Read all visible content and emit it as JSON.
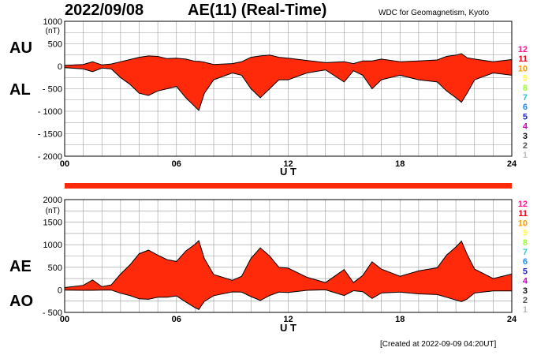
{
  "header": {
    "date": "2022/09/08",
    "title": "AE(11) (Real-Time)",
    "source": "WDC for Geomagnetism, Kyoto"
  },
  "footer": {
    "created": "[Created at 2022-09-09 04:20UT]"
  },
  "colors": {
    "fill": "#ff2a0a",
    "outline": "#000000",
    "grid": "#9a9a9a",
    "indicator": "#ff2a0a"
  },
  "legend_levels": {
    "labels": [
      "12",
      "11",
      "10",
      "9",
      "8",
      "7",
      "6",
      "5",
      "4",
      "3",
      "2",
      "1"
    ],
    "colors": [
      "#ff1493",
      "#e8001c",
      "#ff9900",
      "#ffff40",
      "#99ff33",
      "#22cccc",
      "#1c8cff",
      "#2222cc",
      "#cc00cc",
      "#111111",
      "#555555",
      "#bbbbbb"
    ]
  },
  "chart_data": [
    {
      "type": "area",
      "panel": "AU / AL",
      "labels": [
        "AU",
        "AL"
      ],
      "unit": "(nT)",
      "xlabel": "U T",
      "xlim": [
        0,
        24
      ],
      "xticks": [
        "00",
        "06",
        "12",
        "18",
        "24"
      ],
      "ylim": [
        -2000,
        1000
      ],
      "yticks": [
        "1000",
        "500",
        "0",
        "- 500",
        "- 1000",
        "- 1500",
        "- 2000"
      ],
      "grid": true,
      "x": [
        0,
        1,
        1.5,
        2,
        2.5,
        3,
        3.5,
        4,
        4.5,
        5,
        5.5,
        6,
        6.5,
        7,
        7.2,
        7.5,
        8,
        9,
        9.5,
        10,
        10.5,
        11,
        11.5,
        12,
        13,
        14,
        15,
        15.5,
        16,
        16.5,
        17,
        18,
        19,
        20,
        20.5,
        21,
        21.3,
        21.6,
        22,
        23,
        24
      ],
      "series": [
        {
          "name": "AU",
          "values": [
            20,
            40,
            100,
            30,
            50,
            100,
            150,
            200,
            230,
            220,
            170,
            180,
            160,
            110,
            110,
            90,
            40,
            60,
            100,
            200,
            230,
            250,
            200,
            180,
            130,
            80,
            100,
            60,
            120,
            120,
            160,
            100,
            120,
            140,
            220,
            250,
            280,
            190,
            160,
            100,
            150
          ]
        },
        {
          "name": "AL",
          "values": [
            -30,
            -60,
            -120,
            -40,
            -60,
            -250,
            -400,
            -600,
            -650,
            -550,
            -500,
            -450,
            -700,
            -900,
            -980,
            -600,
            -300,
            -150,
            -200,
            -500,
            -700,
            -500,
            -300,
            -300,
            -150,
            -80,
            -350,
            -100,
            -200,
            -500,
            -300,
            -200,
            -300,
            -350,
            -550,
            -700,
            -800,
            -600,
            -300,
            -150,
            -200
          ]
        }
      ]
    },
    {
      "type": "area",
      "panel": "AE / AO",
      "labels": [
        "AE",
        "AO"
      ],
      "unit": "(nT)",
      "xlabel": "U T",
      "xlim": [
        0,
        24
      ],
      "xticks": [
        "00",
        "06",
        "12",
        "18",
        "24"
      ],
      "ylim": [
        -500,
        2000
      ],
      "yticks": [
        "2000",
        "1500",
        "1000",
        "500",
        "0",
        "- 500"
      ],
      "grid": true,
      "x": [
        0,
        1,
        1.5,
        2,
        2.5,
        3,
        3.5,
        4,
        4.5,
        5,
        5.5,
        6,
        6.5,
        7,
        7.2,
        7.5,
        8,
        9,
        9.5,
        10,
        10.5,
        11,
        11.5,
        12,
        13,
        14,
        15,
        15.5,
        16,
        16.5,
        17,
        18,
        19,
        20,
        20.5,
        21,
        21.3,
        21.6,
        22,
        23,
        24
      ],
      "series": [
        {
          "name": "AE",
          "values": [
            50,
            100,
            220,
            70,
            110,
            350,
            550,
            800,
            880,
            770,
            670,
            630,
            860,
            1010,
            1090,
            690,
            340,
            210,
            300,
            700,
            930,
            750,
            500,
            480,
            280,
            160,
            450,
            160,
            320,
            620,
            460,
            300,
            420,
            490,
            770,
            950,
            1080,
            790,
            460,
            250,
            350
          ]
        },
        {
          "name": "AO",
          "values": [
            -5,
            -10,
            -10,
            -5,
            -5,
            -75,
            -125,
            -200,
            -210,
            -165,
            -165,
            -135,
            -270,
            -395,
            -435,
            -255,
            -130,
            -45,
            -50,
            -150,
            -235,
            -125,
            -50,
            -60,
            -10,
            0,
            -125,
            -20,
            -40,
            -190,
            -70,
            -50,
            -90,
            -105,
            -165,
            -225,
            -260,
            -205,
            -70,
            -25,
            -25
          ]
        }
      ]
    }
  ]
}
